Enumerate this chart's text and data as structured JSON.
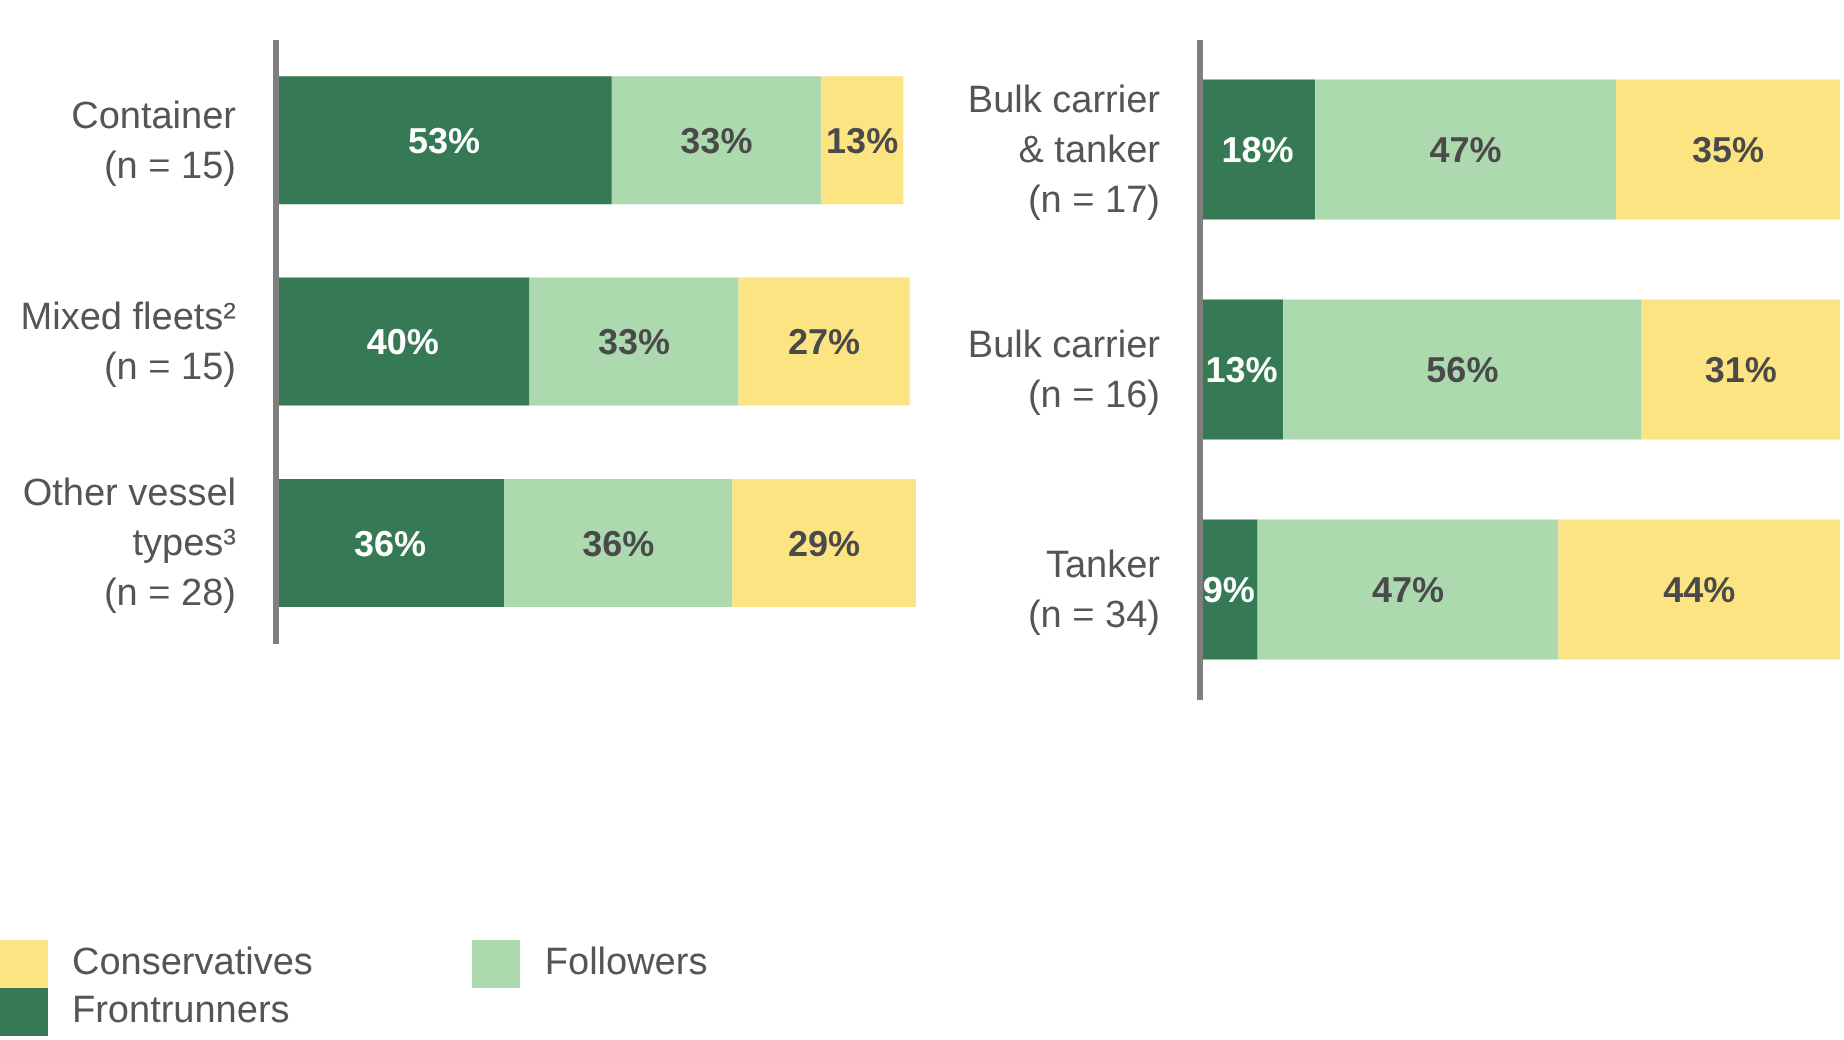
{
  "chart_data": [
    {
      "type": "bar",
      "orientation": "horizontal",
      "stacked": true,
      "legend": "bottom",
      "categories": [
        "Container\n(n = 15)",
        "Mixed fleets²\n(n = 15)",
        "Other vessel\ntypes³\n(n = 28)"
      ],
      "series": [
        {
          "name": "Frontrunners",
          "color": "#367a55",
          "values": [
            53,
            40,
            36
          ],
          "value_labels": [
            "53%",
            "40%",
            "36%"
          ]
        },
        {
          "name": "Followers",
          "color": "#acd9ae",
          "values": [
            33,
            33,
            36
          ],
          "value_labels": [
            "33%",
            "33%",
            "36%"
          ]
        },
        {
          "name": "Conservatives",
          "color": "#fde482",
          "values": [
            13,
            27,
            29
          ],
          "value_labels": [
            "13%",
            "27%",
            "29%"
          ]
        }
      ]
    },
    {
      "type": "bar",
      "orientation": "horizontal",
      "stacked": true,
      "categories": [
        "Bulk carrier\n& tanker\n(n = 17)",
        "Bulk carrier\n(n = 16)",
        "Tanker\n(n = 34)"
      ],
      "series": [
        {
          "color": "#367a55",
          "values": [
            18,
            13,
            9
          ],
          "value_labels": [
            "18%",
            "13%",
            "9%"
          ]
        },
        {
          "color": "#acd9ae",
          "values": [
            47,
            56,
            47
          ],
          "value_labels": [
            "47%",
            "56%",
            "47%"
          ]
        },
        {
          "color": "#fde482",
          "values": [
            35,
            31,
            44
          ],
          "value_labels": [
            "35%",
            "31%",
            "44%"
          ]
        }
      ]
    }
  ]
}
